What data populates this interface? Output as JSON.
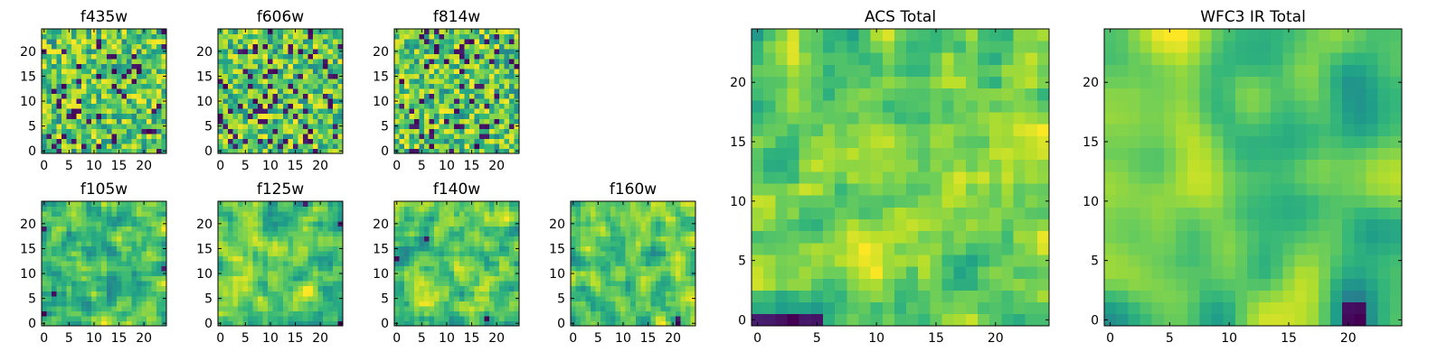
{
  "chart_data": [
    {
      "type": "heatmap",
      "title": "f435w",
      "size": 25,
      "colormap": "viridis",
      "seed": 11,
      "smooth": 0,
      "xticks": [
        "0",
        "5",
        "10",
        "15",
        "20"
      ],
      "yticks": [
        "0",
        "5",
        "10",
        "15",
        "20"
      ]
    },
    {
      "type": "heatmap",
      "title": "f606w",
      "size": 25,
      "colormap": "viridis",
      "seed": 23,
      "smooth": 0,
      "xticks": [
        "0",
        "5",
        "10",
        "15",
        "20"
      ],
      "yticks": [
        "0",
        "5",
        "10",
        "15",
        "20"
      ]
    },
    {
      "type": "heatmap",
      "title": "f814w",
      "size": 25,
      "colormap": "viridis",
      "seed": 37,
      "smooth": 0,
      "xticks": [
        "0",
        "5",
        "10",
        "15",
        "20"
      ],
      "yticks": [
        "0",
        "5",
        "10",
        "15",
        "20"
      ]
    },
    {
      "type": "heatmap",
      "title": "f105w",
      "size": 25,
      "colormap": "viridis",
      "seed": 41,
      "smooth": 1,
      "xticks": [
        "0",
        "5",
        "10",
        "15",
        "20"
      ],
      "yticks": [
        "0",
        "5",
        "10",
        "15",
        "20"
      ]
    },
    {
      "type": "heatmap",
      "title": "f125w",
      "size": 25,
      "colormap": "viridis",
      "seed": 53,
      "smooth": 1,
      "xticks": [
        "0",
        "5",
        "10",
        "15",
        "20"
      ],
      "yticks": [
        "0",
        "5",
        "10",
        "15",
        "20"
      ]
    },
    {
      "type": "heatmap",
      "title": "f140w",
      "size": 25,
      "colormap": "viridis",
      "seed": 67,
      "smooth": 1,
      "xticks": [
        "0",
        "5",
        "10",
        "15",
        "20"
      ],
      "yticks": [
        "0",
        "5",
        "10",
        "15",
        "20"
      ]
    },
    {
      "type": "heatmap",
      "title": "f160w",
      "size": 25,
      "colormap": "viridis",
      "seed": 79,
      "smooth": 1,
      "xticks": [
        "0",
        "5",
        "10",
        "15",
        "20"
      ],
      "yticks": [
        "0",
        "5",
        "10",
        "15",
        "20"
      ]
    },
    {
      "type": "heatmap",
      "title": "ACS Total",
      "size": 25,
      "colormap": "viridis",
      "seed": 97,
      "smooth": 1,
      "xticks": [
        "0",
        "5",
        "10",
        "15",
        "20"
      ],
      "yticks": [
        "0",
        "5",
        "10",
        "15",
        "20"
      ]
    },
    {
      "type": "heatmap",
      "title": "WFC3 IR Total",
      "size": 25,
      "colormap": "viridis",
      "seed": 131,
      "smooth": 3,
      "xticks": [
        "0",
        "5",
        "10",
        "15",
        "20"
      ],
      "yticks": [
        "0",
        "5",
        "10",
        "15",
        "20"
      ]
    }
  ]
}
